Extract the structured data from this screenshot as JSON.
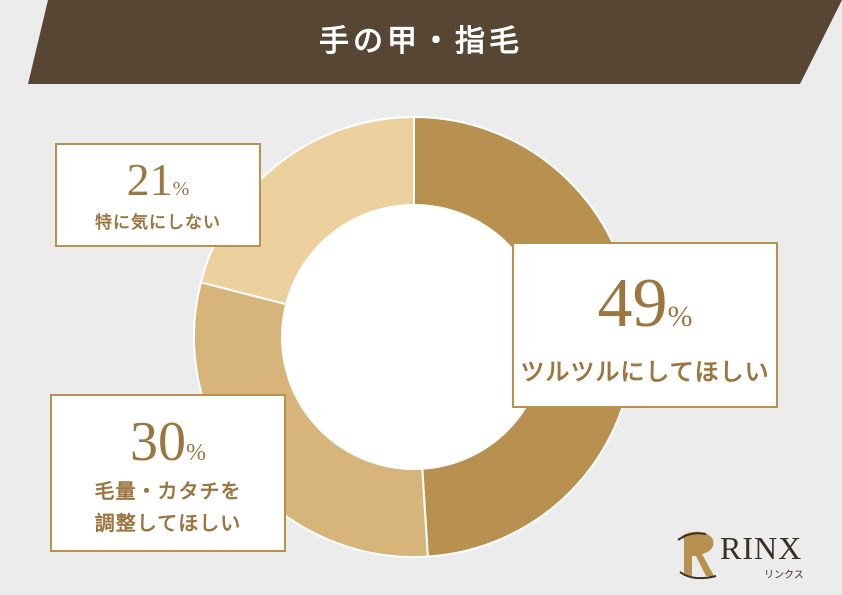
{
  "header": {
    "title": "手の甲・指毛"
  },
  "colors": {
    "banner": "#574634",
    "background": "#ececec",
    "accent_text": "#9c7640",
    "callout_border": "#b89150"
  },
  "chart_data": {
    "type": "pie",
    "title": "手の甲・指毛",
    "series": [
      {
        "name": "",
        "values": [
          49,
          30,
          21
        ]
      }
    ],
    "categories": [
      "ツルツルにしてほしい",
      "毛量・カタチを\n調整してほしい",
      "特に気にしない"
    ],
    "slices": [
      {
        "label": "ツルツルにしてほしい",
        "value": 49,
        "color": "#b89150"
      },
      {
        "label": "毛量・カタチを\n調整してほしい",
        "value": 30,
        "color": "#d7b479"
      },
      {
        "label": "特に気にしない",
        "value": 21,
        "color": "#ecd19f"
      }
    ],
    "legend": "callouts",
    "unit": "%",
    "donut": true
  },
  "callouts": [
    {
      "percent": "49",
      "sign": "%",
      "label": "ツルツルにしてほしい"
    },
    {
      "percent": "30",
      "sign": "%",
      "label_line1": "毛量・カタチを",
      "label_line2": "調整してほしい"
    },
    {
      "percent": "21",
      "sign": "%",
      "label": "特に気にしない"
    }
  ],
  "logo": {
    "name": "RINX",
    "sub": "リンクス",
    "mark": "R"
  }
}
